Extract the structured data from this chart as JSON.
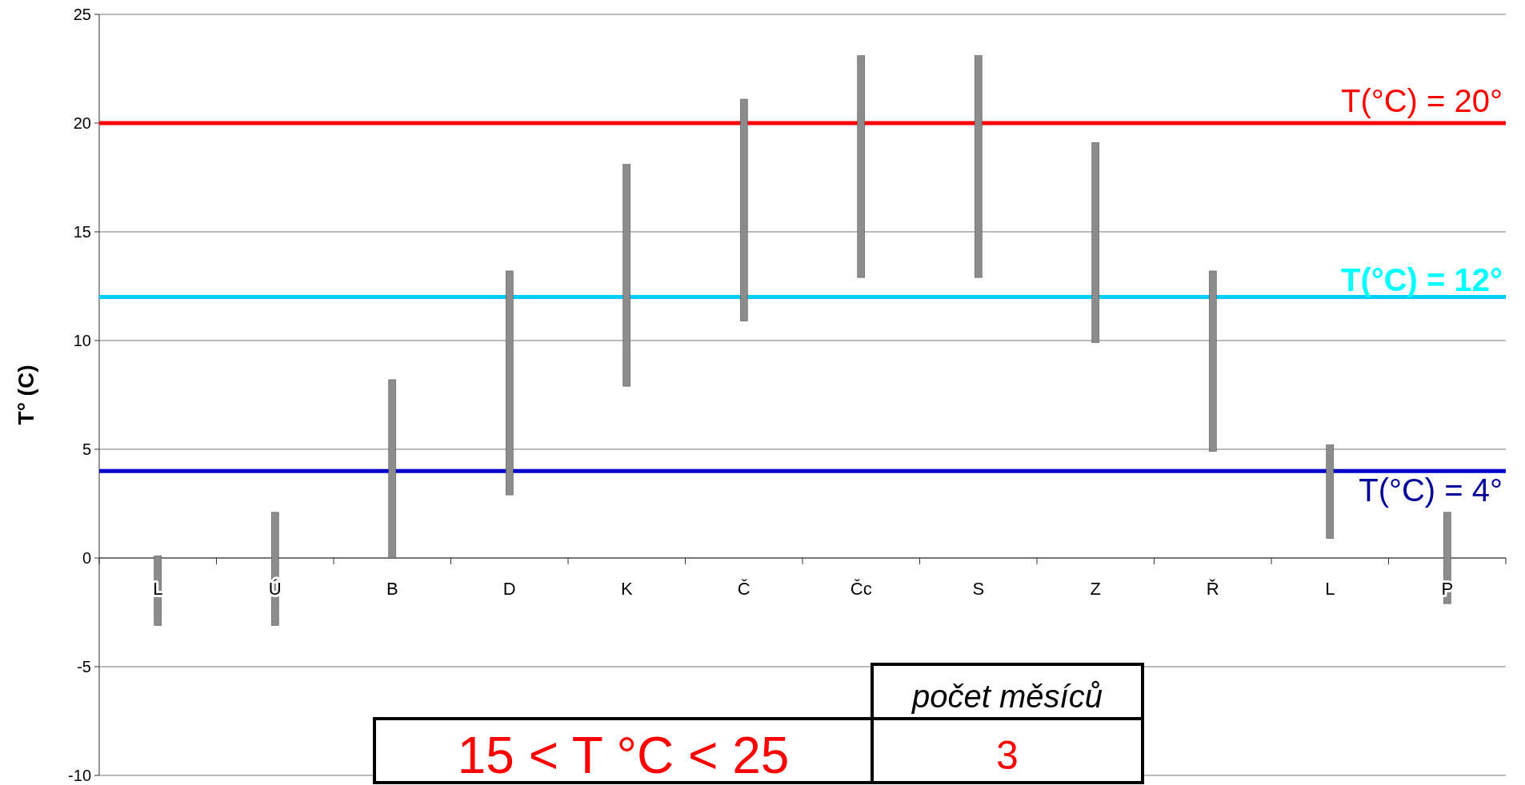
{
  "chart_data": {
    "type": "bar",
    "ylabel": "T° (C)",
    "categories": [
      "L",
      "Ú",
      "B",
      "D",
      "K",
      "Č",
      "Čc",
      "S",
      "Z",
      "Ř",
      "L",
      "P"
    ],
    "base": [
      -3.1,
      -3.1,
      0,
      2.9,
      7.9,
      10.9,
      12.9,
      12.9,
      9.9,
      4.9,
      0.9,
      -2.1
    ],
    "values": [
      3.2,
      5.2,
      8.2,
      10.3,
      10.2,
      10.2,
      10.2,
      10.2,
      9.2,
      8.3,
      4.3,
      4.2
    ],
    "color": "#8c8c8c",
    "ylim": [
      -10,
      25
    ],
    "yticks": [
      -10,
      -5,
      0,
      5,
      10,
      15,
      20,
      25
    ],
    "grid": "y",
    "ref_lines": [
      {
        "axis": "y",
        "value": 20,
        "label": "T(°C) = 20°",
        "color": "#ff0000"
      },
      {
        "axis": "y",
        "value": 12,
        "label": "T(°C) = 12°",
        "color": "#00ccff"
      },
      {
        "axis": "y",
        "value": 4,
        "label": "T(°C) = 4°",
        "color": "#0000cc"
      }
    ],
    "annotations": [
      "počet měsíců",
      "15 < T °C < 25",
      "3"
    ]
  }
}
